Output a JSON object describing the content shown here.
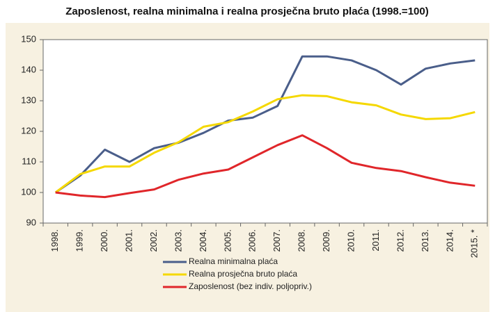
{
  "chart_data": {
    "type": "line",
    "title": "Zaposlenost, realna minimalna i realna prosječna bruto plaća (1998.=100)",
    "categories": [
      "1998.",
      "1999.",
      "2000.",
      "2001.",
      "2002.",
      "2003.",
      "2004.",
      "2005.",
      "2006.",
      "2007.",
      "2008.",
      "2009.",
      "2010.",
      "2011.",
      "2012.",
      "2013.",
      "2014.",
      "2015. *"
    ],
    "series": [
      {
        "name": "Realna minimalna plaća",
        "color": "#4a5e8a",
        "values": [
          100,
          105.5,
          114,
          110,
          114.5,
          116.3,
          119.5,
          123.5,
          124.5,
          128.3,
          144.5,
          144.5,
          143.2,
          140,
          135.3,
          140.5,
          142.2,
          143.2
        ]
      },
      {
        "name": "Realna prosječna bruto plaća",
        "color": "#f5d800",
        "values": [
          100,
          106,
          108.5,
          108.5,
          113,
          116.5,
          121.5,
          123,
          126.5,
          130.5,
          131.8,
          131.5,
          129.5,
          128.5,
          125.5,
          124,
          124.3,
          126.3
        ]
      },
      {
        "name": "Zaposlenost (bez indiv. poljopriv.)",
        "color": "#e0262a",
        "values": [
          100,
          99,
          98.5,
          99.8,
          101,
          104.2,
          106.2,
          107.5,
          111.5,
          115.5,
          118.7,
          114.5,
          109.7,
          108,
          107,
          105,
          103.2,
          102.2
        ]
      }
    ],
    "ylim": [
      90,
      150
    ],
    "yticks": [
      90,
      100,
      110,
      120,
      130,
      140,
      150
    ],
    "grid": false
  }
}
